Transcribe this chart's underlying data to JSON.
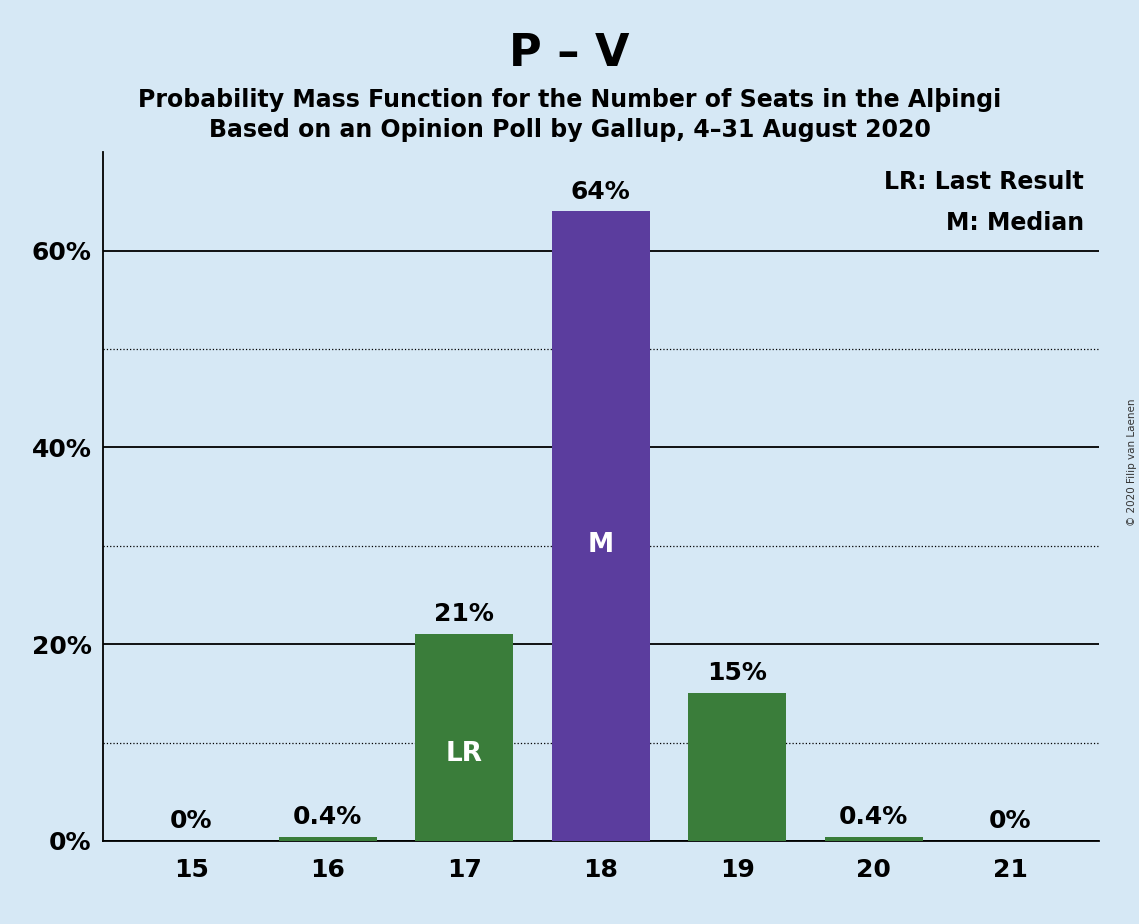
{
  "title": "P – V",
  "subtitle1": "Probability Mass Function for the Number of Seats in the Alþingi",
  "subtitle2": "Based on an Opinion Poll by Gallup, 4–31 August 2020",
  "categories": [
    15,
    16,
    17,
    18,
    19,
    20,
    21
  ],
  "values": [
    0.0,
    0.4,
    21.0,
    64.0,
    15.0,
    0.4,
    0.0
  ],
  "bar_labels": [
    "0%",
    "0.4%",
    "21%",
    "64%",
    "15%",
    "0.4%",
    "0%"
  ],
  "bar_colors": [
    "#3a7d3a",
    "#3a7d3a",
    "#3a7d3a",
    "#5b3d9e",
    "#3a7d3a",
    "#3a7d3a",
    "#3a7d3a"
  ],
  "median_bar_index": 3,
  "lr_bar_index": 2,
  "background_color": "#d6e8f5",
  "title_fontsize": 32,
  "subtitle_fontsize": 17,
  "label_fontsize": 19,
  "tick_fontsize": 18,
  "legend_fontsize": 17,
  "bar_label_fontsize": 18,
  "ylim": [
    0,
    70
  ],
  "copyright_text": "© 2020 Filip van Laenen",
  "legend_lr": "LR: Last Result",
  "legend_m": "M: Median",
  "bar_width": 0.72
}
